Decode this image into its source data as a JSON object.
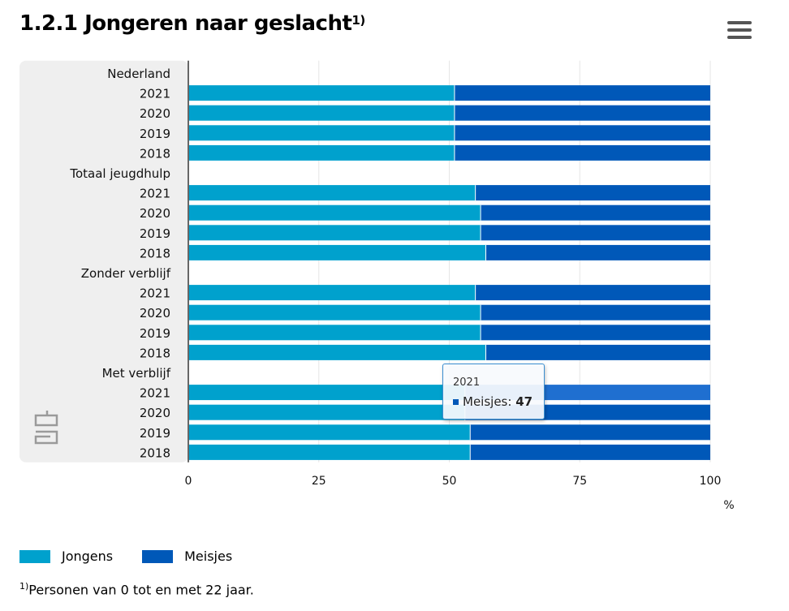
{
  "title": "1.2.1 Jongeren naar geslacht",
  "title_sup": "1)",
  "menu_icon": "hamburger-menu-icon",
  "logo_icon": "cbs-logo-icon",
  "colors": {
    "jongens": "#00a1cd",
    "meisjes": "#0058b8",
    "meisjes_hover": "#1f6fd0",
    "panel": "#efefef",
    "axis": "#666666"
  },
  "chart_data": {
    "type": "bar",
    "orientation": "horizontal",
    "stacking": "percent",
    "xlim": [
      0,
      100
    ],
    "xticks": [
      "0",
      "25",
      "50",
      "75",
      "100"
    ],
    "xunit": "%",
    "groups": [
      {
        "label": "Nederland",
        "rows": [
          {
            "year": "2021",
            "jongens": 51,
            "meisjes": 49
          },
          {
            "year": "2020",
            "jongens": 51,
            "meisjes": 49
          },
          {
            "year": "2019",
            "jongens": 51,
            "meisjes": 49
          },
          {
            "year": "2018",
            "jongens": 51,
            "meisjes": 49
          }
        ]
      },
      {
        "label": "Totaal jeugdhulp",
        "rows": [
          {
            "year": "2021",
            "jongens": 55,
            "meisjes": 45
          },
          {
            "year": "2020",
            "jongens": 56,
            "meisjes": 44
          },
          {
            "year": "2019",
            "jongens": 56,
            "meisjes": 44
          },
          {
            "year": "2018",
            "jongens": 57,
            "meisjes": 43
          }
        ]
      },
      {
        "label": "Zonder verblijf",
        "rows": [
          {
            "year": "2021",
            "jongens": 55,
            "meisjes": 45
          },
          {
            "year": "2020",
            "jongens": 56,
            "meisjes": 44
          },
          {
            "year": "2019",
            "jongens": 56,
            "meisjes": 44
          },
          {
            "year": "2018",
            "jongens": 57,
            "meisjes": 43
          }
        ]
      },
      {
        "label": "Met verblijf",
        "rows": [
          {
            "year": "2021",
            "jongens": 53,
            "meisjes": 47
          },
          {
            "year": "2020",
            "jongens": 53,
            "meisjes": 47
          },
          {
            "year": "2019",
            "jongens": 54,
            "meisjes": 46
          },
          {
            "year": "2018",
            "jongens": 54,
            "meisjes": 46
          }
        ]
      }
    ],
    "series": [
      {
        "name": "Jongens"
      },
      {
        "name": "Meisjes"
      }
    ],
    "legend_position": "bottom-left"
  },
  "tooltip": {
    "header": "2021",
    "series": "Meisjes",
    "value": "47"
  },
  "legend": {
    "jongens": "Jongens",
    "meisjes": "Meisjes"
  },
  "footnote": {
    "sup": "1)",
    "text": "Personen van 0 tot en met 22 jaar."
  }
}
